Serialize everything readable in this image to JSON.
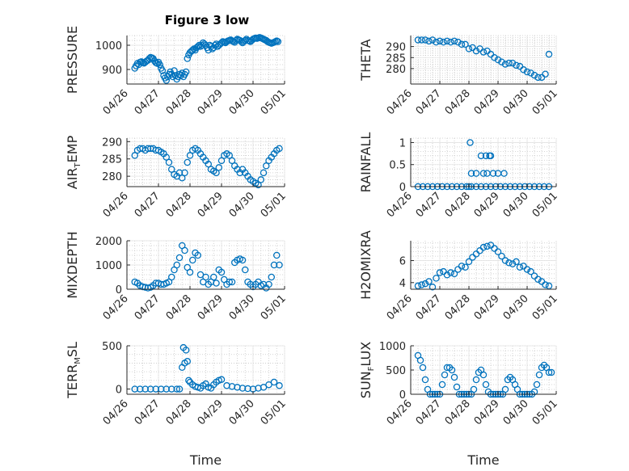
{
  "figure": {
    "title": "Figure 3 low"
  },
  "chart_data": [
    {
      "type": "scatter",
      "panel": "top-left",
      "ylabel": "PRESSURE",
      "ylabel_main": "PRESSURE",
      "ylim": [
        840,
        1040
      ],
      "yticks": [
        900,
        1000
      ],
      "xlim": [
        "04/26",
        "05/01"
      ],
      "xticks": [
        "04/26",
        "04/27",
        "04/28",
        "04/29",
        "04/30",
        "05/01"
      ],
      "grid": true,
      "marker_color": "#0072BD",
      "x": [
        "04/26 06:00",
        "04/26 07:00",
        "04/26 08:00",
        "04/26 09:00",
        "04/26 10:00",
        "04/26 11:00",
        "04/26 12:00",
        "04/26 13:00",
        "04/26 14:00",
        "04/26 15:00",
        "04/26 16:00",
        "04/26 17:00",
        "04/26 18:00",
        "04/26 19:00",
        "04/26 20:00",
        "04/26 21:00",
        "04/26 22:00",
        "04/26 23:00",
        "04/27 00:00",
        "04/27 01:00",
        "04/27 02:00",
        "04/27 03:00",
        "04/27 04:00",
        "04/27 05:00",
        "04/27 06:00",
        "04/27 07:00",
        "04/27 08:00",
        "04/27 09:00",
        "04/27 10:00",
        "04/27 11:00",
        "04/27 12:00",
        "04/27 13:00",
        "04/27 14:00",
        "04/27 15:00",
        "04/27 16:00",
        "04/27 17:00",
        "04/27 18:00",
        "04/27 19:00",
        "04/27 20:00",
        "04/27 21:00",
        "04/27 22:00",
        "04/27 23:00",
        "04/28 00:00",
        "04/28 01:00",
        "04/28 02:00",
        "04/28 03:00",
        "04/28 04:00",
        "04/28 05:00",
        "04/28 06:00",
        "04/28 07:00",
        "04/28 08:00",
        "04/28 09:00",
        "04/28 10:00",
        "04/28 11:00",
        "04/28 12:00",
        "04/28 13:00",
        "04/28 14:00",
        "04/28 15:00",
        "04/28 16:00",
        "04/28 17:00",
        "04/28 18:00",
        "04/28 19:00",
        "04/28 20:00",
        "04/28 21:00",
        "04/28 22:00",
        "04/28 23:00",
        "04/29 00:00",
        "04/29 01:00",
        "04/29 02:00",
        "04/29 03:00",
        "04/29 04:00",
        "04/29 05:00",
        "04/29 06:00",
        "04/29 07:00",
        "04/29 08:00",
        "04/29 09:00",
        "04/29 10:00",
        "04/29 11:00",
        "04/29 12:00",
        "04/29 13:00",
        "04/29 14:00",
        "04/29 15:00",
        "04/29 16:00",
        "04/29 17:00",
        "04/29 18:00",
        "04/29 19:00",
        "04/29 20:00",
        "04/29 21:00",
        "04/29 22:00",
        "04/29 23:00",
        "04/30 00:00",
        "04/30 01:00",
        "04/30 02:00",
        "04/30 03:00",
        "04/30 04:00",
        "04/30 05:00",
        "04/30 06:00",
        "04/30 07:00",
        "04/30 08:00",
        "04/30 09:00",
        "04/30 10:00",
        "04/30 11:00",
        "04/30 12:00",
        "04/30 13:00",
        "04/30 14:00",
        "04/30 15:00",
        "04/30 16:00",
        "04/30 17:00",
        "04/30 18:00",
        "04/30 19:00"
      ],
      "y": [
        905,
        915,
        925,
        920,
        930,
        932,
        928,
        926,
        930,
        935,
        938,
        945,
        950,
        948,
        945,
        935,
        928,
        925,
        930,
        920,
        905,
        895,
        875,
        865,
        855,
        870,
        880,
        890,
        880,
        870,
        895,
        875,
        860,
        870,
        880,
        875,
        885,
        870,
        880,
        890,
        945,
        960,
        970,
        975,
        980,
        985,
        980,
        990,
        995,
        1000,
        995,
        1000,
        1010,
        1005,
        1000,
        990,
        980,
        1000,
        995,
        985,
        990,
        1000,
        1005,
        995,
        1000,
        1005,
        1010,
        1015,
        1012,
        1010,
        1015,
        1018,
        1020,
        1022,
        1018,
        1015,
        1012,
        1020,
        1025,
        1022,
        1020,
        1015,
        1010,
        1015,
        1020,
        1025,
        1020,
        1018,
        1015,
        1020,
        1025,
        1028,
        1030,
        1028,
        1030,
        1032,
        1030,
        1028,
        1025,
        1022,
        1020,
        1015,
        1012,
        1010,
        1008,
        1010,
        1012,
        1015,
        1018,
        1015
      ]
    },
    {
      "type": "scatter",
      "panel": "top-right",
      "ylabel": "THETA",
      "ylabel_main": "THETA",
      "ylim": [
        273,
        295
      ],
      "yticks": [
        280,
        285,
        290
      ],
      "xlim": [
        "04/26",
        "05/01"
      ],
      "xticks": [
        "04/26",
        "04/27",
        "04/28",
        "04/29",
        "04/30",
        "05/01"
      ],
      "grid": true,
      "marker_color": "#0072BD",
      "x": [
        "04/26 06:00",
        "04/26 09:00",
        "04/26 12:00",
        "04/26 15:00",
        "04/26 18:00",
        "04/26 21:00",
        "04/27 00:00",
        "04/27 03:00",
        "04/27 06:00",
        "04/27 09:00",
        "04/27 12:00",
        "04/27 15:00",
        "04/27 18:00",
        "04/27 21:00",
        "04/28 00:00",
        "04/28 03:00",
        "04/28 06:00",
        "04/28 09:00",
        "04/28 12:00",
        "04/28 15:00",
        "04/28 18:00",
        "04/28 21:00",
        "04/29 00:00",
        "04/29 03:00",
        "04/29 06:00",
        "04/29 09:00",
        "04/29 12:00",
        "04/29 15:00",
        "04/29 18:00",
        "04/29 21:00",
        "04/30 00:00",
        "04/30 03:00",
        "04/30 06:00",
        "04/30 09:00",
        "04/30 12:00",
        "04/30 15:00",
        "04/30 18:00"
      ],
      "y": [
        293,
        293,
        293,
        292.5,
        293,
        292,
        292.5,
        292,
        292.5,
        292,
        292.5,
        292,
        291,
        291,
        289,
        289.5,
        288,
        289,
        287.5,
        288,
        286.5,
        285,
        284,
        283,
        282,
        282.5,
        282.5,
        281.5,
        281,
        279.5,
        278.5,
        278,
        277,
        276,
        276,
        277.5,
        286.5
      ]
    },
    {
      "type": "scatter",
      "panel": "mid-left",
      "ylabel": "AIR_TEMP",
      "ylabel_main": "AIR",
      "ylabel_sub": "T",
      "ylabel_rest": "EMP",
      "ylim": [
        277,
        291
      ],
      "yticks": [
        280,
        285,
        290
      ],
      "xlim": [
        "04/26",
        "05/01"
      ],
      "xticks": [
        "04/26",
        "04/27",
        "04/28",
        "04/29",
        "04/30",
        "05/01"
      ],
      "grid": true,
      "marker_color": "#0072BD",
      "x": [
        "04/26 06:00",
        "04/26 08:00",
        "04/26 10:00",
        "04/26 12:00",
        "04/26 14:00",
        "04/26 16:00",
        "04/26 18:00",
        "04/26 20:00",
        "04/26 22:00",
        "04/27 00:00",
        "04/27 02:00",
        "04/27 04:00",
        "04/27 06:00",
        "04/27 08:00",
        "04/27 10:00",
        "04/27 12:00",
        "04/27 14:00",
        "04/27 16:00",
        "04/27 18:00",
        "04/27 20:00",
        "04/27 22:00",
        "04/28 00:00",
        "04/28 02:00",
        "04/28 04:00",
        "04/28 06:00",
        "04/28 08:00",
        "04/28 10:00",
        "04/28 12:00",
        "04/28 14:00",
        "04/28 16:00",
        "04/28 18:00",
        "04/28 20:00",
        "04/28 22:00",
        "04/29 00:00",
        "04/29 02:00",
        "04/29 04:00",
        "04/29 06:00",
        "04/29 08:00",
        "04/29 10:00",
        "04/29 12:00",
        "04/29 14:00",
        "04/29 16:00",
        "04/29 18:00",
        "04/29 20:00",
        "04/29 22:00",
        "04/30 00:00",
        "04/30 02:00",
        "04/30 04:00",
        "04/30 06:00",
        "04/30 08:00",
        "04/30 10:00",
        "04/30 12:00",
        "04/30 14:00",
        "04/30 16:00",
        "04/30 18:00",
        "04/30 20:00"
      ],
      "y": [
        286,
        287.5,
        288,
        288,
        287.5,
        288,
        288,
        288,
        287.5,
        287.5,
        287,
        286.5,
        285.5,
        284,
        282,
        280.5,
        280,
        281,
        279.5,
        281,
        284,
        286,
        287.5,
        288,
        287.5,
        286.5,
        285.5,
        284.5,
        283.5,
        282,
        281.5,
        281,
        282.5,
        284.5,
        286,
        286.5,
        286,
        284.5,
        283,
        282,
        281,
        282,
        281,
        280,
        279,
        278.5,
        278,
        277.5,
        279,
        281,
        283,
        284.5,
        285.5,
        286.5,
        287.5,
        288
      ]
    },
    {
      "type": "scatter",
      "panel": "mid-right",
      "ylabel": "RAINFALL",
      "ylabel_main": "RAINFALL",
      "ylim": [
        0,
        1.1
      ],
      "yticks": [
        0,
        0.5,
        1
      ],
      "xlim": [
        "04/26",
        "05/01"
      ],
      "xticks": [
        "04/26",
        "04/27",
        "04/28",
        "04/29",
        "04/30",
        "05/01"
      ],
      "grid": true,
      "marker_color": "#0072BD",
      "x": [
        "04/26 06:00",
        "04/26 10:00",
        "04/26 14:00",
        "04/26 18:00",
        "04/26 22:00",
        "04/27 02:00",
        "04/27 06:00",
        "04/27 10:00",
        "04/27 14:00",
        "04/27 18:00",
        "04/27 22:00",
        "04/28 02:00",
        "04/28 06:00",
        "04/28 10:00",
        "04/28 14:00",
        "04/28 18:00",
        "04/28 22:00",
        "04/29 02:00",
        "04/29 06:00",
        "04/29 10:00",
        "04/29 14:00",
        "04/29 18:00",
        "04/29 22:00",
        "04/30 02:00",
        "04/30 06:00",
        "04/30 10:00",
        "04/30 14:00",
        "04/30 18:00",
        "04/28 01:00",
        "04/28 02:00",
        "04/28 06:00",
        "04/28 10:00",
        "04/28 12:00",
        "04/28 14:00",
        "04/28 15:00",
        "04/28 17:00",
        "04/28 18:00",
        "04/28 20:00",
        "04/29 00:00",
        "04/29 05:00",
        "04/28 00:00"
      ],
      "y": [
        0,
        0,
        0,
        0,
        0,
        0,
        0,
        0,
        0,
        0,
        0,
        0,
        0,
        0,
        0,
        0,
        0,
        0,
        0,
        0,
        0,
        0,
        0,
        0,
        0,
        0,
        0,
        0,
        1,
        0.3,
        0.3,
        0.7,
        0.3,
        0.7,
        0.3,
        0.7,
        0.7,
        0.3,
        0.3,
        0.3,
        0
      ]
    },
    {
      "type": "scatter",
      "panel": "row3-left",
      "ylabel": "MIXDEPTH",
      "ylabel_main": "MIXDEPTH",
      "ylim": [
        0,
        2000
      ],
      "yticks": [
        0,
        1000,
        2000
      ],
      "xlim": [
        "04/26",
        "05/01"
      ],
      "xticks": [
        "04/26",
        "04/27",
        "04/28",
        "04/29",
        "04/30",
        "05/01"
      ],
      "grid": true,
      "marker_color": "#0072BD",
      "x": [
        "04/26 06:00",
        "04/26 08:00",
        "04/26 10:00",
        "04/26 12:00",
        "04/26 14:00",
        "04/26 16:00",
        "04/26 18:00",
        "04/26 20:00",
        "04/26 22:00",
        "04/27 00:00",
        "04/27 02:00",
        "04/27 04:00",
        "04/27 06:00",
        "04/27 08:00",
        "04/27 10:00",
        "04/27 12:00",
        "04/27 14:00",
        "04/27 16:00",
        "04/27 18:00",
        "04/27 20:00",
        "04/27 22:00",
        "04/28 00:00",
        "04/28 02:00",
        "04/28 04:00",
        "04/28 06:00",
        "04/28 08:00",
        "04/28 10:00",
        "04/28 12:00",
        "04/28 14:00",
        "04/28 16:00",
        "04/28 18:00",
        "04/28 20:00",
        "04/28 22:00",
        "04/29 00:00",
        "04/29 02:00",
        "04/29 04:00",
        "04/29 06:00",
        "04/29 08:00",
        "04/29 10:00",
        "04/29 12:00",
        "04/29 14:00",
        "04/29 16:00",
        "04/29 18:00",
        "04/29 20:00",
        "04/29 22:00",
        "04/30 00:00",
        "04/30 02:00",
        "04/30 04:00",
        "04/30 06:00",
        "04/30 08:00",
        "04/30 10:00",
        "04/30 12:00",
        "04/30 14:00",
        "04/30 16:00",
        "04/30 18:00",
        "04/30 20:00"
      ],
      "y": [
        300,
        250,
        150,
        100,
        80,
        50,
        80,
        150,
        250,
        250,
        200,
        200,
        250,
        300,
        500,
        800,
        1000,
        1300,
        1800,
        1600,
        900,
        700,
        1200,
        1500,
        1400,
        600,
        300,
        500,
        200,
        300,
        500,
        250,
        800,
        700,
        400,
        200,
        300,
        300,
        1100,
        1200,
        1250,
        1200,
        800,
        300,
        200,
        100,
        200,
        300,
        150,
        200,
        50,
        200,
        500,
        1000,
        1400,
        1000
      ]
    },
    {
      "type": "scatter",
      "panel": "row3-right",
      "ylabel": "H2OMIXRA",
      "ylabel_main": "H2OMIXRA",
      "ylim": [
        3.4,
        7.8
      ],
      "yticks": [
        4,
        6
      ],
      "xlim": [
        "04/26",
        "05/01"
      ],
      "xticks": [
        "04/26",
        "04/27",
        "04/28",
        "04/29",
        "04/30",
        "05/01"
      ],
      "grid": true,
      "marker_color": "#0072BD",
      "x": [
        "04/26 06:00",
        "04/26 09:00",
        "04/26 12:00",
        "04/26 15:00",
        "04/26 18:00",
        "04/26 21:00",
        "04/27 00:00",
        "04/27 03:00",
        "04/27 06:00",
        "04/27 09:00",
        "04/27 12:00",
        "04/27 15:00",
        "04/27 18:00",
        "04/27 21:00",
        "04/28 00:00",
        "04/28 03:00",
        "04/28 06:00",
        "04/28 09:00",
        "04/28 12:00",
        "04/28 15:00",
        "04/28 18:00",
        "04/28 21:00",
        "04/29 00:00",
        "04/29 03:00",
        "04/29 06:00",
        "04/29 09:00",
        "04/29 12:00",
        "04/29 15:00",
        "04/29 18:00",
        "04/29 21:00",
        "04/30 00:00",
        "04/30 03:00",
        "04/30 06:00",
        "04/30 09:00",
        "04/30 12:00",
        "04/30 15:00",
        "04/30 18:00"
      ],
      "y": [
        3.7,
        3.8,
        3.9,
        4.1,
        3.6,
        4.4,
        4.9,
        5.0,
        4.7,
        4.9,
        4.8,
        5.2,
        5.5,
        5.4,
        5.9,
        6.3,
        6.6,
        6.9,
        7.2,
        7.3,
        7.4,
        7.1,
        6.8,
        6.4,
        6.0,
        5.8,
        5.7,
        5.9,
        5.4,
        5.5,
        5.2,
        5.0,
        4.6,
        4.3,
        4.1,
        3.8,
        3.7
      ]
    },
    {
      "type": "scatter",
      "panel": "bottom-left",
      "ylabel": "TERR_MSL",
      "ylabel_main": "TERR",
      "ylabel_sub": "M",
      "ylabel_rest": "SL",
      "ylim": [
        -60,
        500
      ],
      "yticks": [
        0,
        500
      ],
      "xlim": [
        "04/26",
        "05/01"
      ],
      "xticks": [
        "04/26",
        "04/27",
        "04/28",
        "04/29",
        "04/30",
        "05/01"
      ],
      "grid": true,
      "marker_color": "#0072BD",
      "xlabel": "Time",
      "x": [
        "04/26 06:00",
        "04/26 10:00",
        "04/26 14:00",
        "04/26 18:00",
        "04/26 22:00",
        "04/27 02:00",
        "04/27 06:00",
        "04/27 10:00",
        "04/27 14:00",
        "04/27 16:00",
        "04/27 18:00",
        "04/27 19:00",
        "04/27 20:00",
        "04/27 21:00",
        "04/27 22:00",
        "04/27 23:00",
        "04/28 00:00",
        "04/28 02:00",
        "04/28 04:00",
        "04/28 06:00",
        "04/28 08:00",
        "04/28 10:00",
        "04/28 12:00",
        "04/28 14:00",
        "04/28 16:00",
        "04/28 18:00",
        "04/28 20:00",
        "04/28 22:00",
        "04/29 00:00",
        "04/29 04:00",
        "04/29 08:00",
        "04/29 12:00",
        "04/29 16:00",
        "04/29 20:00",
        "04/30 00:00",
        "04/30 04:00",
        "04/30 08:00",
        "04/30 12:00",
        "04/30 16:00",
        "04/30 20:00"
      ],
      "y": [
        0,
        0,
        0,
        0,
        0,
        0,
        0,
        0,
        0,
        0,
        250,
        480,
        300,
        450,
        320,
        100,
        80,
        50,
        30,
        20,
        10,
        40,
        60,
        20,
        10,
        50,
        80,
        100,
        110,
        40,
        30,
        20,
        10,
        5,
        0,
        10,
        20,
        50,
        80,
        40
      ]
    },
    {
      "type": "scatter",
      "panel": "bottom-right",
      "ylabel": "SUN_FLUX",
      "ylabel_main": "SUN",
      "ylabel_sub": "F",
      "ylabel_rest": "LUX",
      "ylim": [
        0,
        1000
      ],
      "yticks": [
        0,
        500,
        1000
      ],
      "xlim": [
        "04/26",
        "05/01"
      ],
      "xticks": [
        "04/26",
        "04/27",
        "04/28",
        "04/29",
        "04/30",
        "05/01"
      ],
      "grid": true,
      "marker_color": "#0072BD",
      "xlabel": "Time",
      "x": [
        "04/26 06:00",
        "04/26 08:00",
        "04/26 10:00",
        "04/26 12:00",
        "04/26 14:00",
        "04/26 16:00",
        "04/26 18:00",
        "04/26 20:00",
        "04/26 22:00",
        "04/27 00:00",
        "04/27 02:00",
        "04/27 04:00",
        "04/27 06:00",
        "04/27 08:00",
        "04/27 10:00",
        "04/27 12:00",
        "04/27 14:00",
        "04/27 16:00",
        "04/27 18:00",
        "04/27 20:00",
        "04/27 22:00",
        "04/28 00:00",
        "04/28 02:00",
        "04/28 04:00",
        "04/28 06:00",
        "04/28 08:00",
        "04/28 10:00",
        "04/28 12:00",
        "04/28 14:00",
        "04/28 16:00",
        "04/28 18:00",
        "04/28 20:00",
        "04/28 22:00",
        "04/29 00:00",
        "04/29 02:00",
        "04/29 04:00",
        "04/29 06:00",
        "04/29 08:00",
        "04/29 10:00",
        "04/29 12:00",
        "04/29 14:00",
        "04/29 16:00",
        "04/29 18:00",
        "04/29 20:00",
        "04/29 22:00",
        "04/30 00:00",
        "04/30 02:00",
        "04/30 04:00",
        "04/30 06:00",
        "04/30 08:00",
        "04/30 10:00",
        "04/30 12:00",
        "04/30 14:00",
        "04/30 16:00",
        "04/30 18:00",
        "04/30 20:00"
      ],
      "y": [
        800,
        700,
        550,
        300,
        100,
        0,
        0,
        0,
        0,
        0,
        200,
        400,
        550,
        550,
        500,
        350,
        150,
        0,
        0,
        0,
        0,
        0,
        0,
        100,
        300,
        450,
        500,
        400,
        200,
        50,
        0,
        0,
        0,
        0,
        0,
        0,
        100,
        300,
        350,
        300,
        200,
        100,
        0,
        0,
        0,
        0,
        0,
        0,
        50,
        200,
        400,
        550,
        600,
        550,
        450,
        450
      ]
    }
  ]
}
